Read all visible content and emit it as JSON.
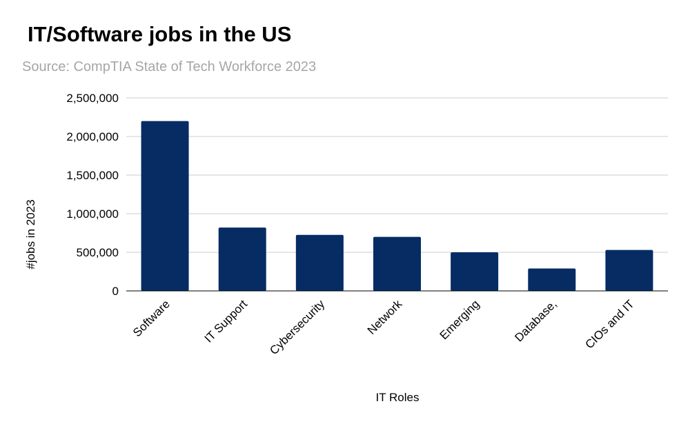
{
  "chart_data": {
    "type": "bar",
    "title": "IT/Software jobs in the US",
    "subtitle": "Source: CompTIA State of Tech Workforce 2023",
    "xlabel": "IT Roles",
    "ylabel": "#jobs in 2023",
    "categories": [
      "Software",
      "IT Support",
      "Cybersecurity",
      "Network",
      "Emerging",
      "Database,",
      "CIOs and IT"
    ],
    "values": [
      2200000,
      820000,
      725000,
      700000,
      500000,
      290000,
      530000
    ],
    "ylim": [
      0,
      2500000
    ],
    "yticks": [
      0,
      500000,
      1000000,
      1500000,
      2000000,
      2500000
    ],
    "ytick_labels": [
      "0",
      "500,000",
      "1,000,000",
      "1,500,000",
      "2,000,000",
      "2,500,000"
    ],
    "grid": true,
    "legend": "none",
    "bar_color": "#062c63",
    "gridline_color": "#cccccc",
    "subtitle_color": "#a6a6a6"
  }
}
